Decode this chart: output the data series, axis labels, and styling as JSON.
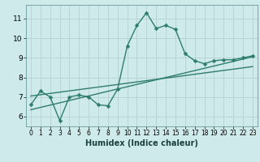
{
  "xlabel": "Humidex (Indice chaleur)",
  "background_color": "#ceeaea",
  "grid_color": "#b8d4d4",
  "line_color": "#2e7d6e",
  "xlim": [
    -0.5,
    23.5
  ],
  "ylim": [
    5.5,
    11.7
  ],
  "yticks": [
    6,
    7,
    8,
    9,
    10,
    11
  ],
  "xticks": [
    0,
    1,
    2,
    3,
    4,
    5,
    6,
    7,
    8,
    9,
    10,
    11,
    12,
    13,
    14,
    15,
    16,
    17,
    18,
    19,
    20,
    21,
    22,
    23
  ],
  "data_x": [
    0,
    1,
    2,
    3,
    4,
    5,
    6,
    7,
    8,
    9,
    10,
    11,
    12,
    13,
    14,
    15,
    16,
    17,
    18,
    19,
    20,
    21,
    22,
    23
  ],
  "data_y": [
    6.6,
    7.3,
    7.0,
    5.8,
    7.0,
    7.1,
    7.0,
    6.6,
    6.55,
    7.4,
    9.6,
    10.65,
    11.3,
    10.5,
    10.65,
    10.45,
    9.2,
    8.85,
    8.7,
    8.85,
    8.9,
    8.9,
    9.0,
    9.1
  ],
  "trend1_x": [
    0,
    23
  ],
  "trend1_y": [
    7.05,
    8.55
  ],
  "trend2_x": [
    0,
    23
  ],
  "trend2_y": [
    6.35,
    9.05
  ]
}
